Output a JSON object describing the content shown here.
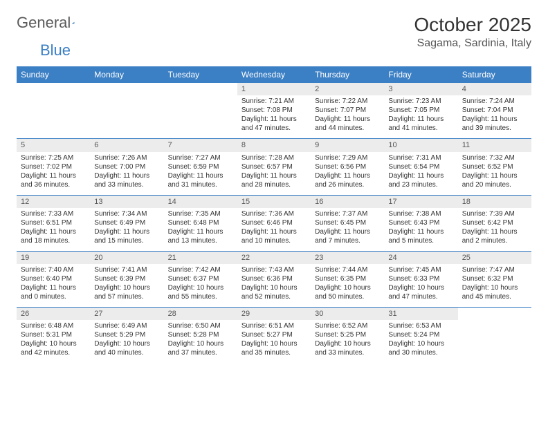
{
  "header": {
    "logo_part1": "General",
    "logo_part2": "Blue",
    "title": "October 2025",
    "location": "Sagama, Sardinia, Italy"
  },
  "colors": {
    "header_bg": "#3b7fc4",
    "header_text": "#ffffff",
    "daynum_bg": "#ececec",
    "row_border": "#3b7fc4",
    "text": "#333333"
  },
  "fonts": {
    "title_size": 28,
    "location_size": 16,
    "weekday_size": 12,
    "daynum_size": 11,
    "cell_size": 10
  },
  "weekdays": [
    "Sunday",
    "Monday",
    "Tuesday",
    "Wednesday",
    "Thursday",
    "Friday",
    "Saturday"
  ],
  "weeks": [
    [
      {
        "day": "",
        "sunrise": "",
        "sunset": "",
        "daylight": ""
      },
      {
        "day": "",
        "sunrise": "",
        "sunset": "",
        "daylight": ""
      },
      {
        "day": "",
        "sunrise": "",
        "sunset": "",
        "daylight": ""
      },
      {
        "day": "1",
        "sunrise": "Sunrise: 7:21 AM",
        "sunset": "Sunset: 7:08 PM",
        "daylight": "Daylight: 11 hours and 47 minutes."
      },
      {
        "day": "2",
        "sunrise": "Sunrise: 7:22 AM",
        "sunset": "Sunset: 7:07 PM",
        "daylight": "Daylight: 11 hours and 44 minutes."
      },
      {
        "day": "3",
        "sunrise": "Sunrise: 7:23 AM",
        "sunset": "Sunset: 7:05 PM",
        "daylight": "Daylight: 11 hours and 41 minutes."
      },
      {
        "day": "4",
        "sunrise": "Sunrise: 7:24 AM",
        "sunset": "Sunset: 7:04 PM",
        "daylight": "Daylight: 11 hours and 39 minutes."
      }
    ],
    [
      {
        "day": "5",
        "sunrise": "Sunrise: 7:25 AM",
        "sunset": "Sunset: 7:02 PM",
        "daylight": "Daylight: 11 hours and 36 minutes."
      },
      {
        "day": "6",
        "sunrise": "Sunrise: 7:26 AM",
        "sunset": "Sunset: 7:00 PM",
        "daylight": "Daylight: 11 hours and 33 minutes."
      },
      {
        "day": "7",
        "sunrise": "Sunrise: 7:27 AM",
        "sunset": "Sunset: 6:59 PM",
        "daylight": "Daylight: 11 hours and 31 minutes."
      },
      {
        "day": "8",
        "sunrise": "Sunrise: 7:28 AM",
        "sunset": "Sunset: 6:57 PM",
        "daylight": "Daylight: 11 hours and 28 minutes."
      },
      {
        "day": "9",
        "sunrise": "Sunrise: 7:29 AM",
        "sunset": "Sunset: 6:56 PM",
        "daylight": "Daylight: 11 hours and 26 minutes."
      },
      {
        "day": "10",
        "sunrise": "Sunrise: 7:31 AM",
        "sunset": "Sunset: 6:54 PM",
        "daylight": "Daylight: 11 hours and 23 minutes."
      },
      {
        "day": "11",
        "sunrise": "Sunrise: 7:32 AM",
        "sunset": "Sunset: 6:52 PM",
        "daylight": "Daylight: 11 hours and 20 minutes."
      }
    ],
    [
      {
        "day": "12",
        "sunrise": "Sunrise: 7:33 AM",
        "sunset": "Sunset: 6:51 PM",
        "daylight": "Daylight: 11 hours and 18 minutes."
      },
      {
        "day": "13",
        "sunrise": "Sunrise: 7:34 AM",
        "sunset": "Sunset: 6:49 PM",
        "daylight": "Daylight: 11 hours and 15 minutes."
      },
      {
        "day": "14",
        "sunrise": "Sunrise: 7:35 AM",
        "sunset": "Sunset: 6:48 PM",
        "daylight": "Daylight: 11 hours and 13 minutes."
      },
      {
        "day": "15",
        "sunrise": "Sunrise: 7:36 AM",
        "sunset": "Sunset: 6:46 PM",
        "daylight": "Daylight: 11 hours and 10 minutes."
      },
      {
        "day": "16",
        "sunrise": "Sunrise: 7:37 AM",
        "sunset": "Sunset: 6:45 PM",
        "daylight": "Daylight: 11 hours and 7 minutes."
      },
      {
        "day": "17",
        "sunrise": "Sunrise: 7:38 AM",
        "sunset": "Sunset: 6:43 PM",
        "daylight": "Daylight: 11 hours and 5 minutes."
      },
      {
        "day": "18",
        "sunrise": "Sunrise: 7:39 AM",
        "sunset": "Sunset: 6:42 PM",
        "daylight": "Daylight: 11 hours and 2 minutes."
      }
    ],
    [
      {
        "day": "19",
        "sunrise": "Sunrise: 7:40 AM",
        "sunset": "Sunset: 6:40 PM",
        "daylight": "Daylight: 11 hours and 0 minutes."
      },
      {
        "day": "20",
        "sunrise": "Sunrise: 7:41 AM",
        "sunset": "Sunset: 6:39 PM",
        "daylight": "Daylight: 10 hours and 57 minutes."
      },
      {
        "day": "21",
        "sunrise": "Sunrise: 7:42 AM",
        "sunset": "Sunset: 6:37 PM",
        "daylight": "Daylight: 10 hours and 55 minutes."
      },
      {
        "day": "22",
        "sunrise": "Sunrise: 7:43 AM",
        "sunset": "Sunset: 6:36 PM",
        "daylight": "Daylight: 10 hours and 52 minutes."
      },
      {
        "day": "23",
        "sunrise": "Sunrise: 7:44 AM",
        "sunset": "Sunset: 6:35 PM",
        "daylight": "Daylight: 10 hours and 50 minutes."
      },
      {
        "day": "24",
        "sunrise": "Sunrise: 7:45 AM",
        "sunset": "Sunset: 6:33 PM",
        "daylight": "Daylight: 10 hours and 47 minutes."
      },
      {
        "day": "25",
        "sunrise": "Sunrise: 7:47 AM",
        "sunset": "Sunset: 6:32 PM",
        "daylight": "Daylight: 10 hours and 45 minutes."
      }
    ],
    [
      {
        "day": "26",
        "sunrise": "Sunrise: 6:48 AM",
        "sunset": "Sunset: 5:31 PM",
        "daylight": "Daylight: 10 hours and 42 minutes."
      },
      {
        "day": "27",
        "sunrise": "Sunrise: 6:49 AM",
        "sunset": "Sunset: 5:29 PM",
        "daylight": "Daylight: 10 hours and 40 minutes."
      },
      {
        "day": "28",
        "sunrise": "Sunrise: 6:50 AM",
        "sunset": "Sunset: 5:28 PM",
        "daylight": "Daylight: 10 hours and 37 minutes."
      },
      {
        "day": "29",
        "sunrise": "Sunrise: 6:51 AM",
        "sunset": "Sunset: 5:27 PM",
        "daylight": "Daylight: 10 hours and 35 minutes."
      },
      {
        "day": "30",
        "sunrise": "Sunrise: 6:52 AM",
        "sunset": "Sunset: 5:25 PM",
        "daylight": "Daylight: 10 hours and 33 minutes."
      },
      {
        "day": "31",
        "sunrise": "Sunrise: 6:53 AM",
        "sunset": "Sunset: 5:24 PM",
        "daylight": "Daylight: 10 hours and 30 minutes."
      },
      {
        "day": "",
        "sunrise": "",
        "sunset": "",
        "daylight": ""
      }
    ]
  ]
}
